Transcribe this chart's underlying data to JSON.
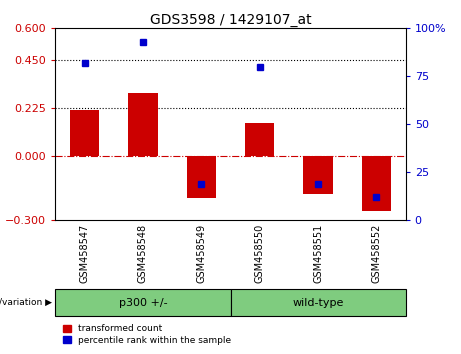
{
  "title": "GDS3598 / 1429107_at",
  "samples": [
    "GSM458547",
    "GSM458548",
    "GSM458549",
    "GSM458550",
    "GSM458551",
    "GSM458552"
  ],
  "transformed_count": [
    0.215,
    0.295,
    -0.195,
    0.155,
    -0.175,
    -0.255
  ],
  "percentile_rank": [
    82,
    93,
    19,
    80,
    19,
    12
  ],
  "bar_color": "#CC0000",
  "dot_color": "#0000CC",
  "ylim_left": [
    -0.3,
    0.6
  ],
  "ylim_right": [
    0,
    100
  ],
  "yticks_left": [
    -0.3,
    0,
    0.225,
    0.45,
    0.6
  ],
  "yticks_right": [
    0,
    25,
    50,
    75,
    100
  ],
  "hlines": [
    0.225,
    0.45
  ],
  "background_color": "#ffffff",
  "plot_bg_color": "#ffffff",
  "xlabel_bg_color": "#d3d3d3",
  "green_color": "#7FCC7F",
  "legend_items": [
    "transformed count",
    "percentile rank within the sample"
  ],
  "genotype_label": "genotype/variation",
  "group1_label": "p300 +/-",
  "group2_label": "wild-type",
  "group1_samples": 3,
  "group2_samples": 3,
  "bar_width": 0.5,
  "title_fontsize": 10,
  "axis_fontsize": 8,
  "tick_fontsize": 8,
  "sample_fontsize": 7
}
